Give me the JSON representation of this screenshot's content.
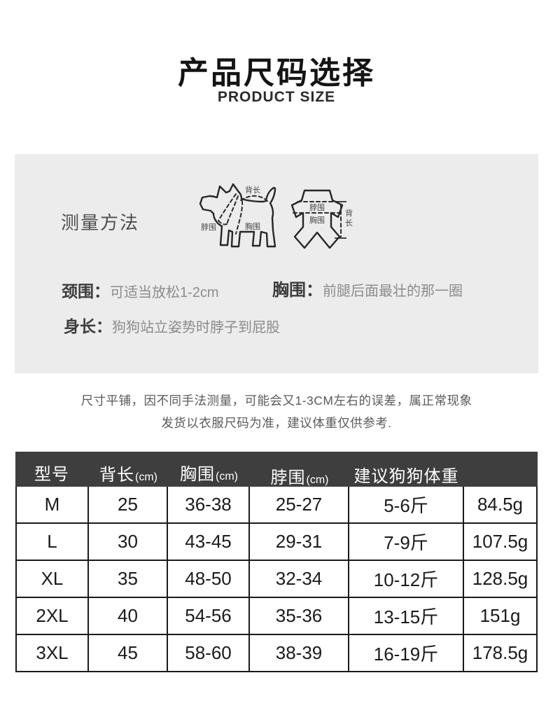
{
  "header": {
    "title": "产品尺码选择",
    "subtitle": "PRODUCT SIZE"
  },
  "measure_panel": {
    "heading": "测量方法",
    "dog_diagram": {
      "back_label": "背长",
      "neck_label": "脖围",
      "chest_label": "胸围"
    },
    "garment_diagram": {
      "neck_label": "脖围",
      "chest_label": "胸围",
      "back_label_char1": "背",
      "back_label_char2": "长"
    },
    "tips": [
      {
        "label": "颈围：",
        "desc": "可适当放松1-2cm"
      },
      {
        "label": "胸围：",
        "desc": "前腿后面最壮的那一圈"
      },
      {
        "label": "身长：",
        "desc": "狗狗站立姿势时脖子到屁股"
      }
    ]
  },
  "note": {
    "line1": "尺寸平铺，因不同手法测量，可能会又1-3CM左右的误差，属正常现象",
    "line2": "发货以衣服尺码为准，建议体重仅供参考."
  },
  "size_table": {
    "headers": [
      {
        "zh": "型号",
        "unit": ""
      },
      {
        "zh": "背长",
        "unit": "(cm)"
      },
      {
        "zh": "胸围",
        "unit": "(cm)"
      },
      {
        "zh": "脖围",
        "unit": "(cm)"
      },
      {
        "zh": "建议狗狗体重",
        "unit": ""
      },
      {
        "zh": "",
        "unit": ""
      }
    ],
    "rows": [
      [
        "M",
        "25",
        "36-38",
        "25-27",
        "5-6斤",
        "84.5g"
      ],
      [
        "L",
        "30",
        "43-45",
        "29-31",
        "7-9斤",
        "107.5g"
      ],
      [
        "XL",
        "35",
        "48-50",
        "32-34",
        "10-12斤",
        "128.5g"
      ],
      [
        "2XL",
        "40",
        "54-56",
        "35-36",
        "13-15斤",
        "151g"
      ],
      [
        "3XL",
        "45",
        "58-60",
        "38-39",
        "16-19斤",
        "178.5g"
      ]
    ]
  },
  "colors": {
    "header_bg": "#3e3e3e",
    "header_text": "#ffffff",
    "panel_bg": "#ececec",
    "table_border": "#1a1a1a",
    "muted_text": "#8c8c8c"
  }
}
